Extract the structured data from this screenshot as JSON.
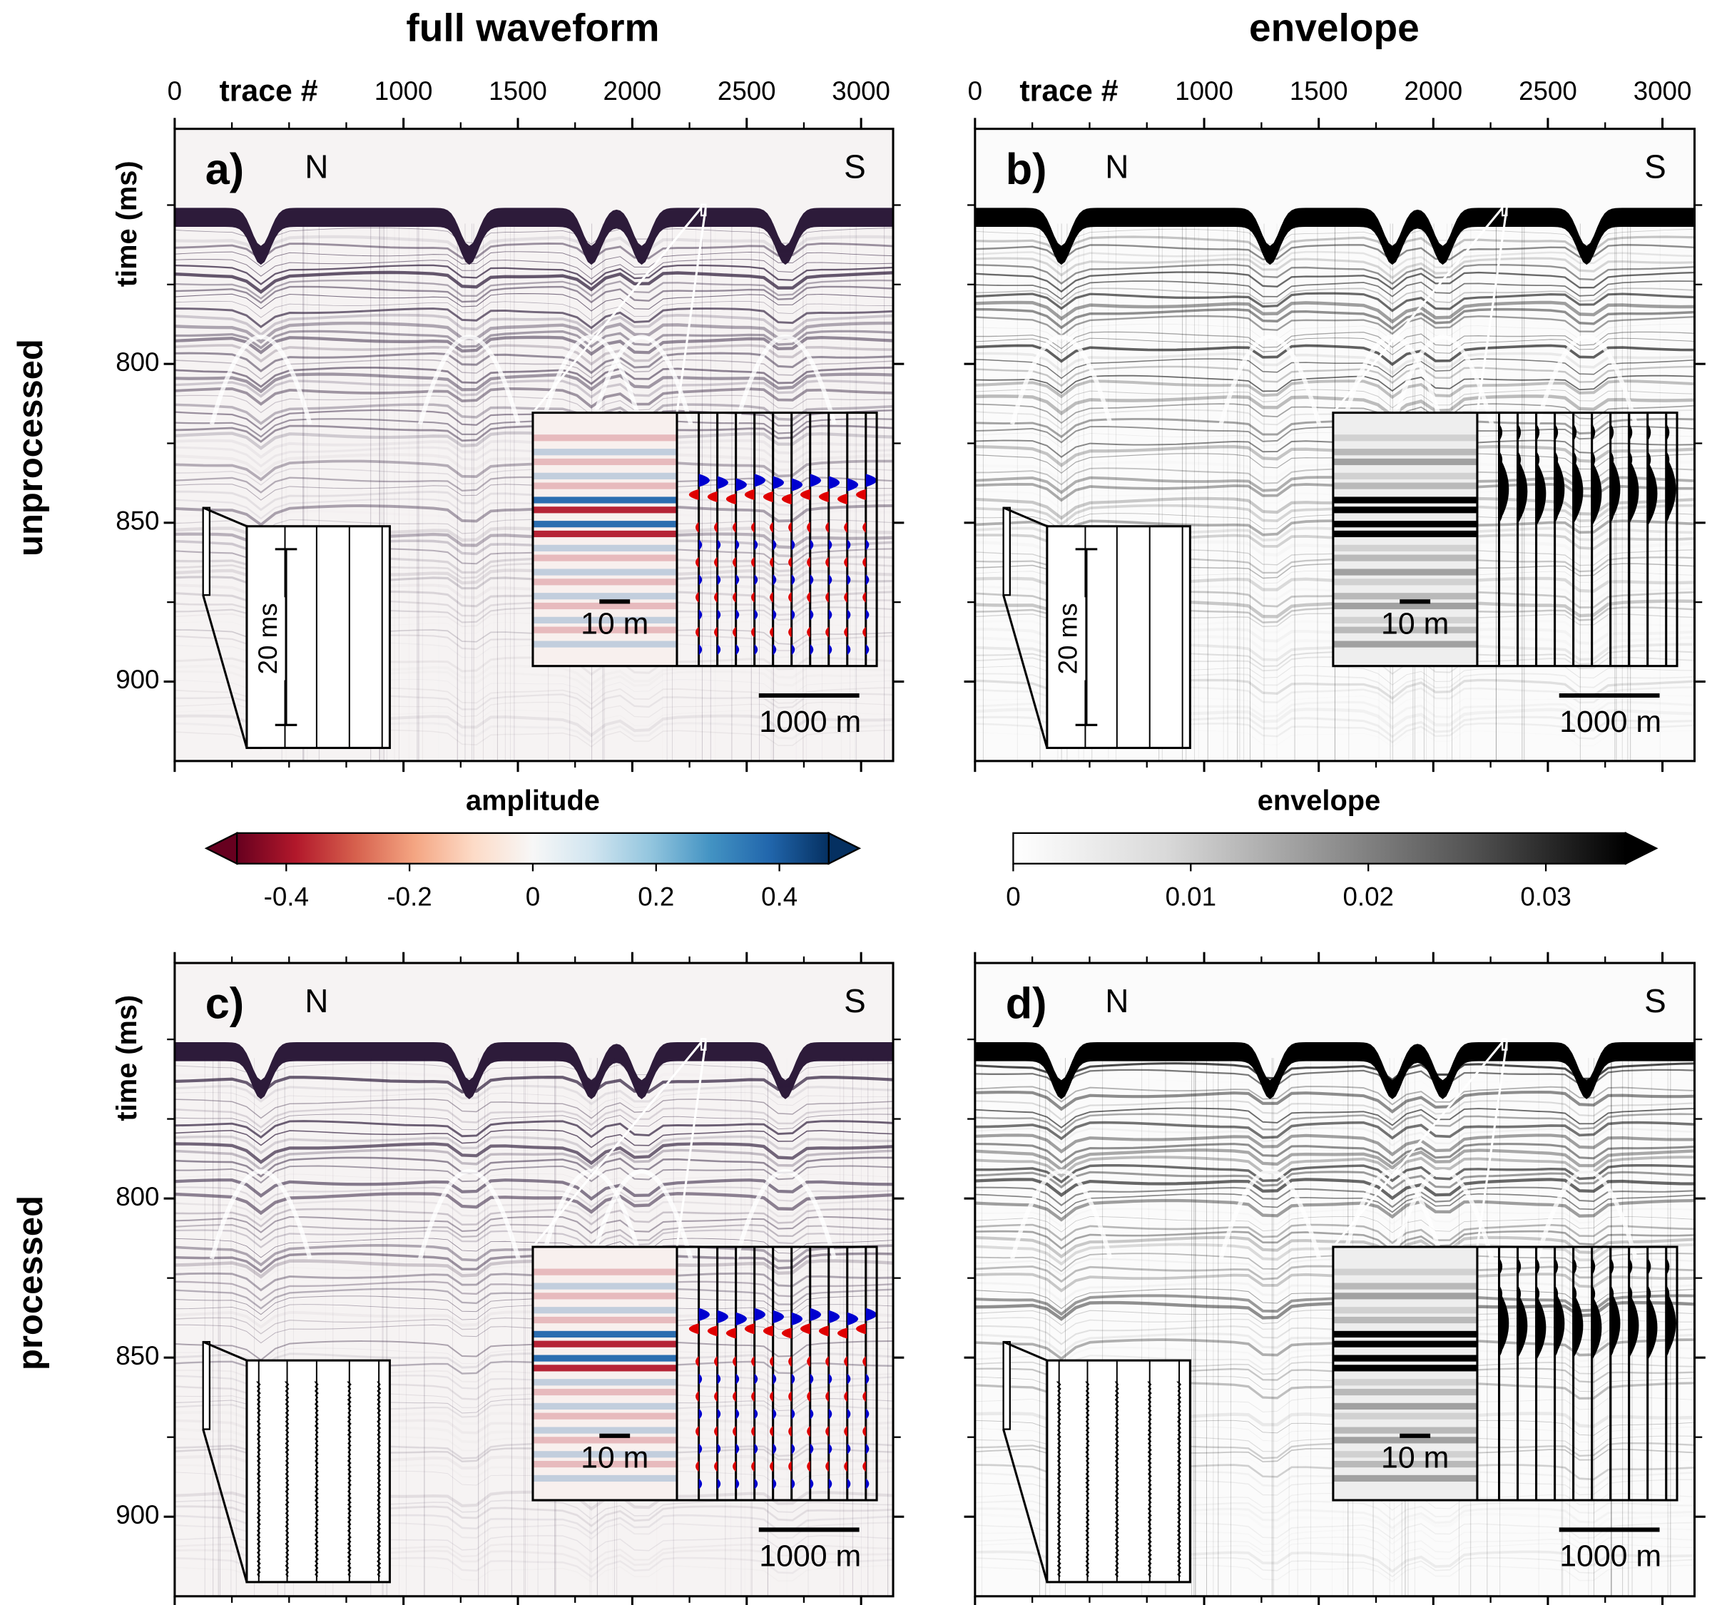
{
  "column_titles": [
    "full waveform",
    "envelope"
  ],
  "row_titles": [
    "unprocessed",
    "processed"
  ],
  "chart_data": [
    {
      "type": "image",
      "panel_label": "a)",
      "x_label": "trace #",
      "y_label": "time (ms)",
      "colormap": "RdBu_r",
      "xlim": [
        0,
        3140
      ],
      "xticks": [
        0,
        1000,
        1500,
        2000,
        2500,
        3000
      ],
      "xminorticks": [
        250,
        500,
        750,
        1250,
        1750,
        2250,
        2750
      ],
      "xtick_labels": true,
      "ylim": [
        726,
        925
      ],
      "y_inverted": true,
      "yticks": [
        800,
        850,
        900
      ],
      "yminorticks": [
        750,
        775,
        825,
        875
      ],
      "ytick_labels": true,
      "annotations": [
        "N",
        "S",
        "10 m",
        "1000 m",
        "20 ms"
      ],
      "inset_traces": 1
    },
    {
      "type": "image",
      "panel_label": "b)",
      "x_label": "trace #",
      "colormap": "Greys",
      "xlim": [
        0,
        3140
      ],
      "xticks": [
        0,
        1000,
        1500,
        2000,
        2500,
        3000
      ],
      "xminorticks": [
        250,
        500,
        750,
        1250,
        1750,
        2250,
        2750
      ],
      "xtick_labels": true,
      "ylim": [
        726,
        925
      ],
      "y_inverted": true,
      "yticks": [
        800,
        850,
        900
      ],
      "yminorticks": [
        750,
        775,
        825,
        875
      ],
      "ytick_labels": false,
      "annotations": [
        "N",
        "S",
        "10 m",
        "1000 m",
        "20 ms"
      ],
      "inset_traces": 1
    },
    {
      "type": "image",
      "panel_label": "c)",
      "y_label": "time (ms)",
      "colormap": "RdBu_r",
      "xlim": [
        0,
        3140
      ],
      "xticks": [
        0,
        1000,
        1500,
        2000,
        2500,
        3000
      ],
      "xminorticks": [
        250,
        500,
        750,
        1250,
        1750,
        2250,
        2750
      ],
      "xtick_labels": false,
      "ylim": [
        726,
        925
      ],
      "y_inverted": true,
      "yticks": [
        800,
        850,
        900
      ],
      "yminorticks": [
        750,
        775,
        825,
        875
      ],
      "ytick_labels": true,
      "annotations": [
        "N",
        "S",
        "10 m",
        "1000 m"
      ],
      "inset_traces": 5
    },
    {
      "type": "image",
      "panel_label": "d)",
      "colormap": "Greys",
      "xlim": [
        0,
        3140
      ],
      "xticks": [
        0,
        1000,
        1500,
        2000,
        2500,
        3000
      ],
      "xminorticks": [
        250,
        500,
        750,
        1250,
        1750,
        2250,
        2750
      ],
      "xtick_labels": false,
      "ylim": [
        726,
        925
      ],
      "y_inverted": true,
      "yticks": [
        800,
        850,
        900
      ],
      "yminorticks": [
        750,
        775,
        825,
        875
      ],
      "ytick_labels": false,
      "annotations": [
        "N",
        "S",
        "10 m",
        "1000 m"
      ],
      "inset_traces": 5
    },
    {
      "type": "colorbar",
      "title": "amplitude",
      "clim": [
        -0.48,
        0.48
      ],
      "ticks": [
        -0.4,
        -0.2,
        0,
        0.2,
        0.4
      ],
      "extend": "both",
      "colors": [
        "#67001f",
        "#b2182b",
        "#d6604d",
        "#f4a582",
        "#fddbc7",
        "#f7f7f7",
        "#d1e5f0",
        "#92c5de",
        "#4393c3",
        "#2166ac",
        "#053061"
      ]
    },
    {
      "type": "colorbar",
      "title": "envelope",
      "clim": [
        0,
        0.0345
      ],
      "ticks": [
        0,
        0.01,
        0.02,
        0.03
      ],
      "extend": "max",
      "colors": [
        "#ffffff",
        "#d9d9d9",
        "#969696",
        "#525252",
        "#000000"
      ]
    }
  ]
}
